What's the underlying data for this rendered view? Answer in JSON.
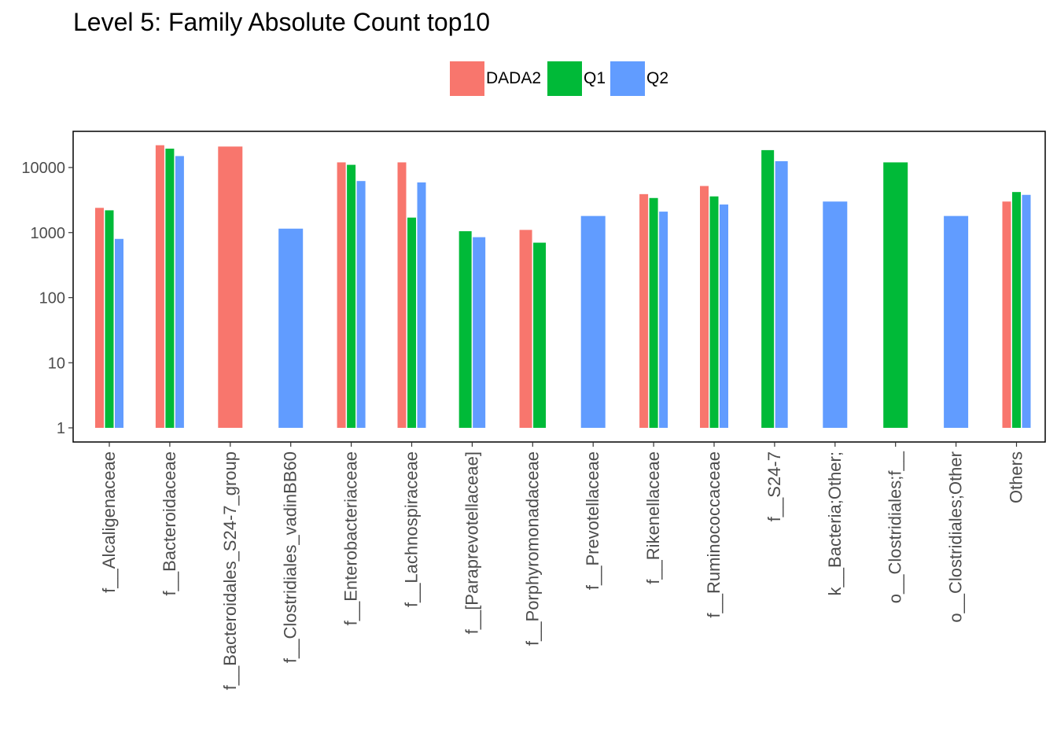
{
  "chart_data": {
    "type": "bar",
    "title": "Level 5: Family Absolute Count top10",
    "xlabel": "",
    "ylabel": "",
    "yscale": "log10",
    "ylim": [
      1,
      30000
    ],
    "yticks": [
      1,
      10,
      100,
      1000,
      10000
    ],
    "ytick_labels": [
      "1",
      "10",
      "100",
      "1000",
      "10000"
    ],
    "grid": false,
    "legend_position": "top",
    "categories": [
      "f__Alcaligenaceae",
      "f__Bacteroidaceae",
      "f__Bacteroidales_S24-7_group",
      "f__Clostridiales_vadinBB60",
      "f__Enterobacteriaceae",
      "f__Lachnospiraceae",
      "f__[Paraprevotellaceae]",
      "f__Porphyromonadaceae",
      "f__Prevotellaceae",
      "f__Rikenellaceae",
      "f__Ruminococcaceae",
      "f__S24-7",
      "k__Bacteria;Other;",
      "o__Clostridiales;f__",
      "o__Clostridiales;Other",
      "Others"
    ],
    "series": [
      {
        "name": "DADA2",
        "color": "#F8766D",
        "values": [
          2400,
          22000,
          21000,
          null,
          12000,
          12000,
          null,
          1100,
          null,
          3900,
          5200,
          null,
          null,
          null,
          null,
          3000
        ]
      },
      {
        "name": "Q1",
        "color": "#00BA38",
        "values": [
          2200,
          19500,
          null,
          null,
          11000,
          1700,
          1050,
          700,
          null,
          3400,
          3600,
          18500,
          null,
          12000,
          null,
          4200
        ]
      },
      {
        "name": "Q2",
        "color": "#619CFF",
        "values": [
          800,
          15000,
          null,
          1150,
          6200,
          5900,
          850,
          null,
          1800,
          2100,
          2700,
          12500,
          3000,
          null,
          1800,
          3800
        ]
      }
    ]
  }
}
